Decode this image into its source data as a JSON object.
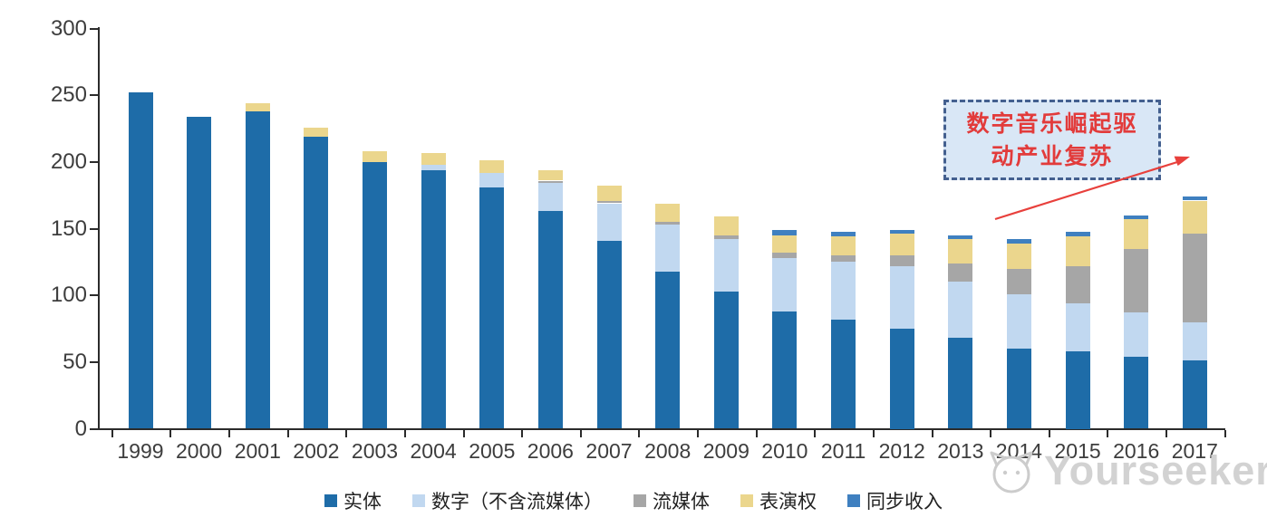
{
  "chart_data": {
    "type": "bar",
    "stacked": true,
    "title": "",
    "xlabel": "",
    "ylabel": "",
    "ylim": [
      0,
      300
    ],
    "yticks": [
      0,
      50,
      100,
      150,
      200,
      250,
      300
    ],
    "grid": false,
    "legend_position": "bottom",
    "categories": [
      "1999",
      "2000",
      "2001",
      "2002",
      "2003",
      "2004",
      "2005",
      "2006",
      "2007",
      "2008",
      "2009",
      "2010",
      "2011",
      "2012",
      "2013",
      "2014",
      "2015",
      "2016",
      "2017"
    ],
    "series": [
      {
        "key": "physical",
        "name": "实体",
        "color": "#1E6CA8",
        "values": [
          252,
          234,
          238,
          219,
          200,
          194,
          181,
          163,
          141,
          118,
          103,
          88,
          82,
          75,
          68,
          60,
          58,
          54,
          51
        ]
      },
      {
        "key": "digital",
        "name": "数字（不含流媒体）",
        "color": "#C1D8F0",
        "values": [
          0,
          0,
          0,
          0,
          0,
          4,
          11,
          21,
          28,
          35,
          39,
          40,
          43,
          47,
          42,
          41,
          36,
          33,
          29
        ]
      },
      {
        "key": "streaming",
        "name": "流媒体",
        "color": "#A6A6A6",
        "values": [
          0,
          0,
          0,
          0,
          0,
          0,
          0,
          2,
          2,
          2,
          3,
          4,
          5,
          8,
          14,
          19,
          28,
          48,
          66
        ]
      },
      {
        "key": "performance",
        "name": "表演权",
        "color": "#EBD68D",
        "values": [
          0,
          0,
          6,
          7,
          8,
          9,
          9,
          8,
          11,
          14,
          14,
          13,
          14,
          16,
          18,
          19,
          22,
          22,
          25
        ]
      },
      {
        "key": "sync",
        "name": "同步收入",
        "color": "#3F80C0",
        "values": [
          0,
          0,
          0,
          0,
          0,
          0,
          0,
          0,
          0,
          0,
          0,
          4,
          4,
          3,
          3,
          3,
          4,
          3,
          3
        ]
      }
    ],
    "totals": [
      252,
      234,
      244,
      226,
      208,
      207,
      201,
      194,
      182,
      169,
      159,
      149,
      148,
      149,
      145,
      142,
      148,
      160,
      174
    ]
  },
  "annotation": {
    "line1": "数字音乐崛起驱",
    "line2": "动产业复苏",
    "full": "数字音乐崛起驱动产业复苏",
    "text_color": "#E23B3B",
    "border_color": "#44608F",
    "fill_color": "#D9E7F6",
    "arrow_color": "#E8403C"
  },
  "watermark": {
    "text": "Yourseeker",
    "color": "#d2d2d2"
  },
  "colors": {
    "axis": "#2b2b2b",
    "tick_label": "#3d3d3d",
    "background": "#ffffff"
  }
}
